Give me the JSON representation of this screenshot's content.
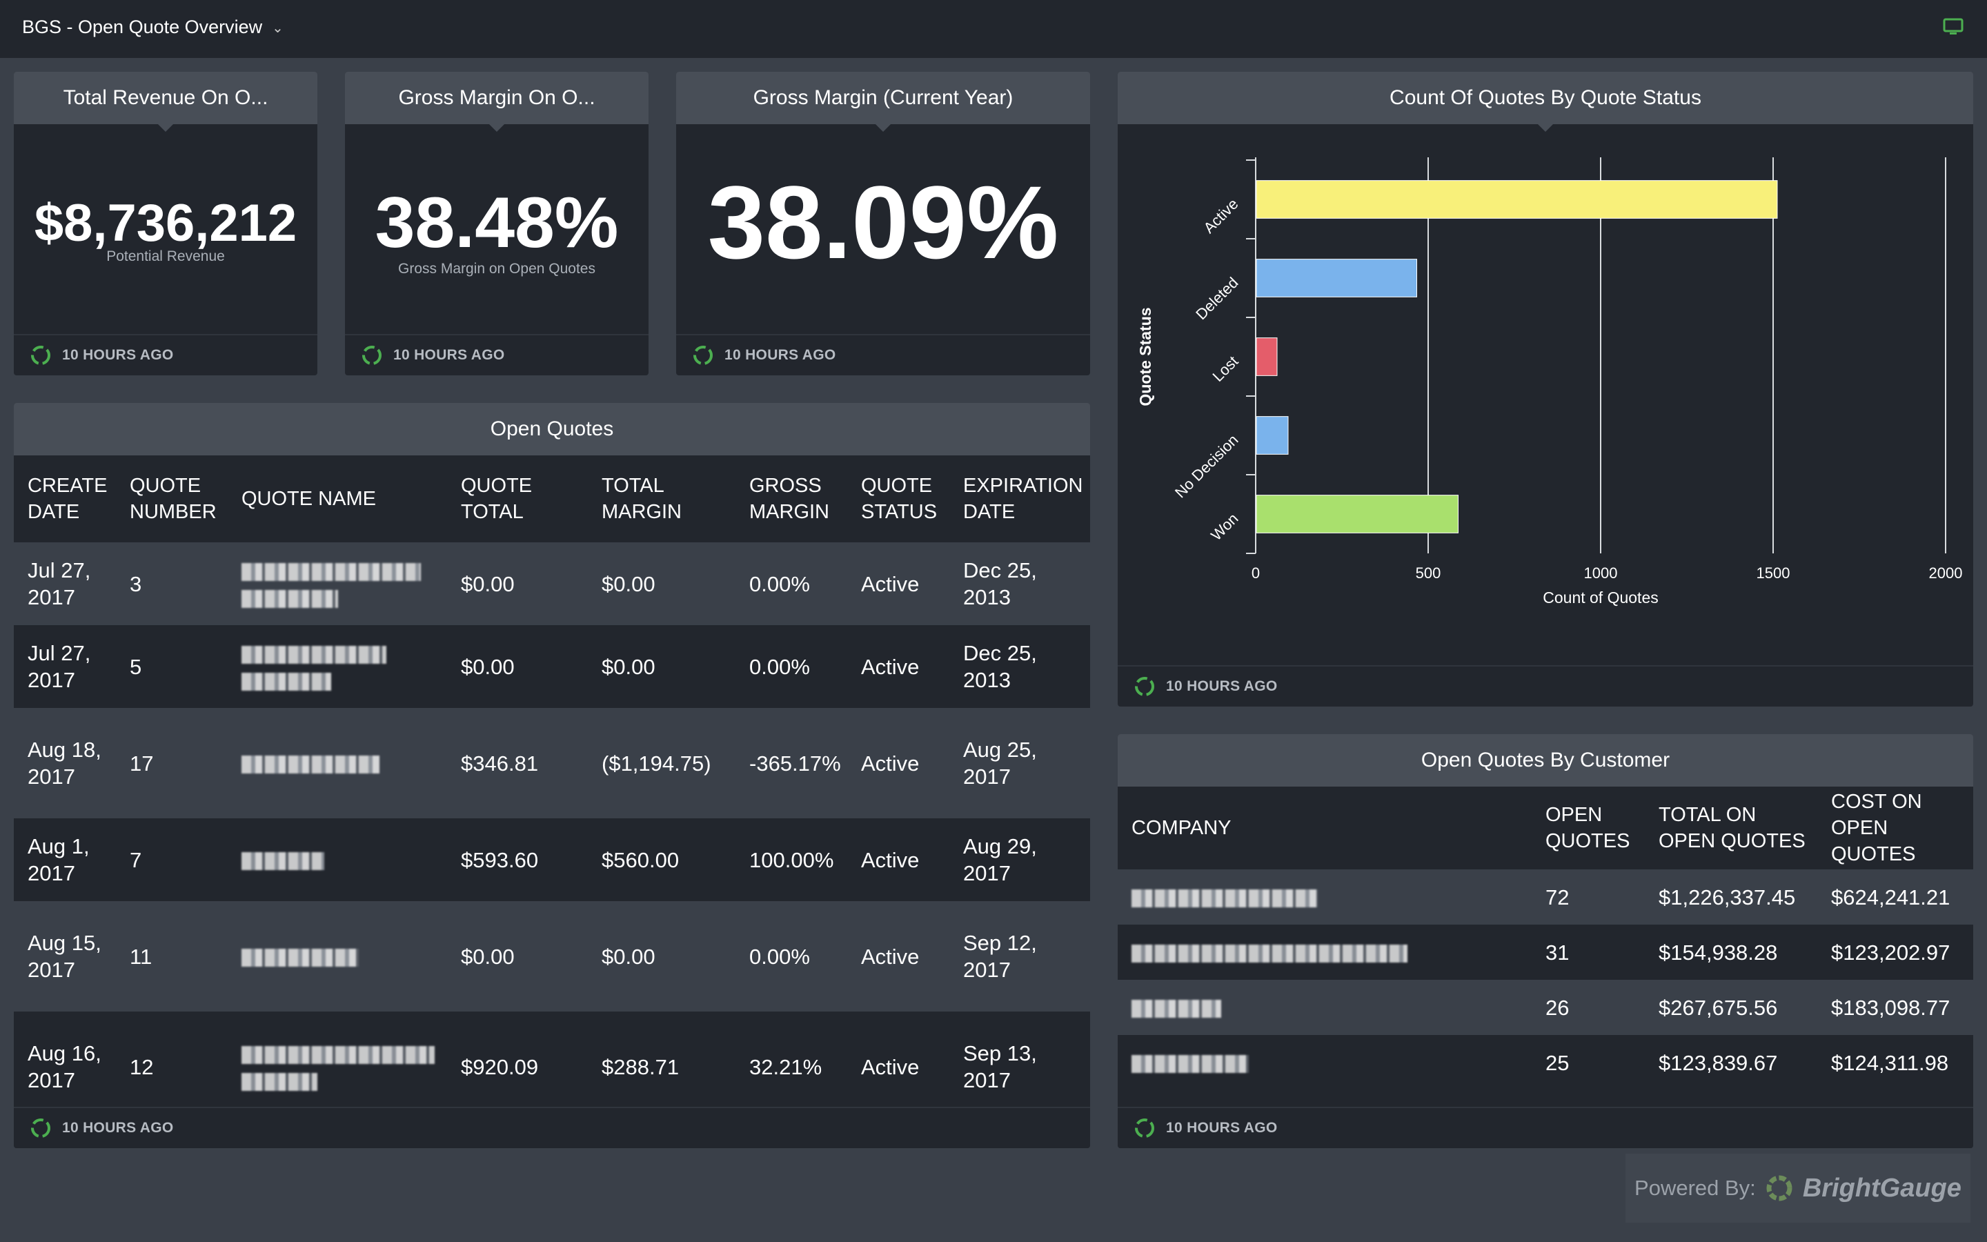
{
  "header": {
    "title": "BGS - Open Quote Overview",
    "chevron_icon": "chevron-down-icon",
    "display_icon": "monitor-icon",
    "accent_color": "#4caf50"
  },
  "kpis": [
    {
      "title": "Total Revenue On O...",
      "value": "$8,736,212",
      "subtitle": "Potential Revenue",
      "updated": "10 HOURS AGO"
    },
    {
      "title": "Gross Margin On O...",
      "value": "38.48%",
      "subtitle": "Gross Margin on Open Quotes",
      "updated": "10 HOURS AGO"
    },
    {
      "title": "Gross Margin (Current Year)",
      "value": "38.09%",
      "subtitle": "",
      "updated": "10 HOURS AGO"
    }
  ],
  "open_quotes": {
    "title": "Open Quotes",
    "columns": [
      "CREATE DATE",
      "QUOTE NUMBER",
      "QUOTE NAME",
      "QUOTE TOTAL",
      "TOTAL MARGIN",
      "GROSS MARGIN",
      "QUOTE STATUS",
      "EXPIRATION DATE"
    ],
    "rows": [
      {
        "create_date": "Jul 27, 2017",
        "quote_number": "3",
        "quote_name": "[redacted]",
        "quote_total": "$0.00",
        "total_margin": "$0.00",
        "gross_margin": "0.00%",
        "status": "Active",
        "expiration": "Dec 25, 2013"
      },
      {
        "create_date": "Jul 27, 2017",
        "quote_number": "5",
        "quote_name": "[redacted]",
        "quote_total": "$0.00",
        "total_margin": "$0.00",
        "gross_margin": "0.00%",
        "status": "Active",
        "expiration": "Dec 25, 2013"
      },
      {
        "create_date": "Aug 18, 2017",
        "quote_number": "17",
        "quote_name": "[redacted]",
        "quote_total": "$346.81",
        "total_margin": "($1,194.75)",
        "gross_margin": "-365.17%",
        "status": "Active",
        "expiration": "Aug 25, 2017"
      },
      {
        "create_date": "Aug 1, 2017",
        "quote_number": "7",
        "quote_name": "[redacted]",
        "quote_total": "$593.60",
        "total_margin": "$560.00",
        "gross_margin": "100.00%",
        "status": "Active",
        "expiration": "Aug 29, 2017"
      },
      {
        "create_date": "Aug 15, 2017",
        "quote_number": "11",
        "quote_name": "[redacted]",
        "quote_total": "$0.00",
        "total_margin": "$0.00",
        "gross_margin": "0.00%",
        "status": "Active",
        "expiration": "Sep 12, 2017"
      },
      {
        "create_date": "Aug 16, 2017",
        "quote_number": "12",
        "quote_name": "[redacted]",
        "quote_total": "$920.09",
        "total_margin": "$288.71",
        "gross_margin": "32.21%",
        "status": "Active",
        "expiration": "Sep 13, 2017"
      }
    ],
    "updated": "10 HOURS AGO"
  },
  "status_chart": {
    "title": "Count Of Quotes By Quote Status",
    "updated": "10 HOURS AGO"
  },
  "chart_data": {
    "type": "bar",
    "orientation": "horizontal",
    "title": "Count Of Quotes By Quote Status",
    "xlabel": "Count of Quotes",
    "ylabel": "Quote Status",
    "categories": [
      "Active",
      "Deleted",
      "Lost",
      "No Decision",
      "Won"
    ],
    "values": [
      1510,
      465,
      60,
      92,
      585
    ],
    "colors": [
      "#f8f07a",
      "#7ab3ec",
      "#e45d6a",
      "#7ab3ec",
      "#a9e06d"
    ],
    "xlim": [
      0,
      2000
    ],
    "xticks": [
      "0",
      "500",
      "1000",
      "1500",
      "2000"
    ],
    "grid": true,
    "legend": "none"
  },
  "customers": {
    "title": "Open Quotes By Customer",
    "columns": [
      "COMPANY",
      "OPEN QUOTES",
      "TOTAL ON OPEN QUOTES",
      "COST ON OPEN QUOTES"
    ],
    "rows": [
      {
        "company": "[redacted]",
        "open_quotes": "72",
        "total": "$1,226,337.45",
        "cost": "$624,241.21"
      },
      {
        "company": "[redacted]",
        "open_quotes": "31",
        "total": "$154,938.28",
        "cost": "$123,202.97"
      },
      {
        "company": "[redacted]",
        "open_quotes": "26",
        "total": "$267,675.56",
        "cost": "$183,098.77"
      },
      {
        "company": "[redacted]",
        "open_quotes": "25",
        "total": "$123,839.67",
        "cost": "$124,311.98"
      }
    ],
    "updated": "10 HOURS AGO"
  },
  "footer": {
    "powered_by": "Powered By:",
    "brand": "BrightGauge",
    "brand_icon": "brightgauge-logo-icon"
  }
}
